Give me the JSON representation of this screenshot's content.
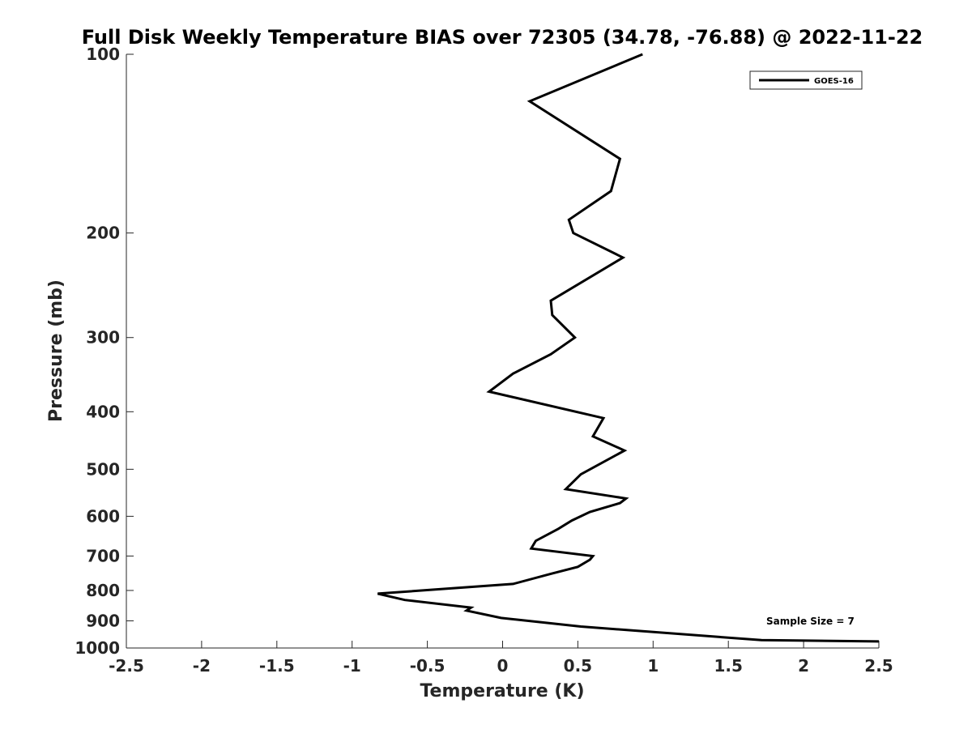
{
  "chart_data": {
    "type": "line",
    "title": "Full Disk Weekly Temperature BIAS over 72305 (34.78, -76.88) @ 2022-11-22",
    "xlabel": "Temperature (K)",
    "ylabel": "Pressure (mb)",
    "xlim": [
      -2.5,
      2.5
    ],
    "ylim": [
      100,
      1000
    ],
    "y_scale": "log",
    "y_reversed": true,
    "x_ticks": [
      -2.5,
      -2,
      -1.5,
      -1,
      -0.5,
      0,
      0.5,
      1,
      1.5,
      2,
      2.5
    ],
    "x_tick_labels": [
      "-2.5",
      "-2",
      "-1.5",
      "-1",
      "-0.5",
      "0",
      "0.5",
      "1",
      "1.5",
      "2",
      "2.5"
    ],
    "y_ticks": [
      100,
      200,
      300,
      400,
      500,
      600,
      700,
      800,
      900,
      1000
    ],
    "y_tick_labels": [
      "100",
      "200",
      "300",
      "400",
      "500",
      "600",
      "700",
      "800",
      "900",
      "1000"
    ],
    "grid": false,
    "legend_position": "top-right",
    "annotation": "Sample Size = 7",
    "series": [
      {
        "name": "GOES-16",
        "color": "#000000",
        "points": [
          [
            0.93,
            100
          ],
          [
            0.18,
            120
          ],
          [
            0.78,
            150
          ],
          [
            0.72,
            170
          ],
          [
            0.44,
            190
          ],
          [
            0.47,
            200
          ],
          [
            0.8,
            220
          ],
          [
            0.32,
            260
          ],
          [
            0.33,
            275
          ],
          [
            0.48,
            300
          ],
          [
            0.32,
            320
          ],
          [
            0.07,
            345
          ],
          [
            -0.09,
            370
          ],
          [
            0.67,
            410
          ],
          [
            0.6,
            440
          ],
          [
            0.81,
            465
          ],
          [
            0.52,
            510
          ],
          [
            0.42,
            540
          ],
          [
            0.82,
            560
          ],
          [
            0.78,
            570
          ],
          [
            0.58,
            590
          ],
          [
            0.46,
            610
          ],
          [
            0.37,
            630
          ],
          [
            0.22,
            660
          ],
          [
            0.19,
            680
          ],
          [
            0.6,
            700
          ],
          [
            0.58,
            710
          ],
          [
            0.5,
            730
          ],
          [
            0.32,
            750
          ],
          [
            0.07,
            780
          ],
          [
            -0.83,
            810
          ],
          [
            -0.65,
            830
          ],
          [
            -0.21,
            855
          ],
          [
            -0.24,
            865
          ],
          [
            -0.01,
            890
          ],
          [
            0.52,
            920
          ],
          [
            1.72,
            970
          ],
          [
            2.5,
            975
          ]
        ]
      }
    ]
  }
}
